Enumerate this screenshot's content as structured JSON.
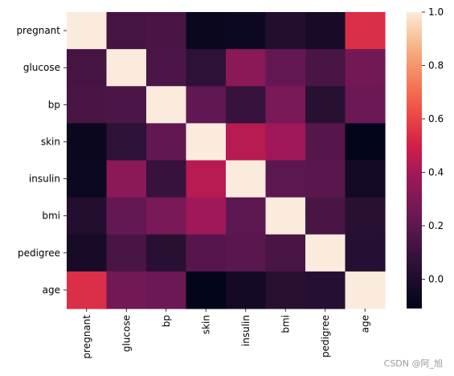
{
  "chart_data": {
    "type": "heatmap",
    "title": "",
    "xlabel": "",
    "ylabel": "",
    "x_categories": [
      "pregnant",
      "glucose",
      "bp",
      "skin",
      "insulin",
      "bmi",
      "pedigree",
      "age"
    ],
    "y_categories": [
      "pregnant",
      "glucose",
      "bp",
      "skin",
      "insulin",
      "bmi",
      "pedigree",
      "age"
    ],
    "values": [
      [
        1.0,
        0.13,
        0.14,
        -0.08,
        -0.07,
        0.02,
        -0.03,
        0.54
      ],
      [
        0.13,
        1.0,
        0.15,
        0.06,
        0.33,
        0.22,
        0.14,
        0.26
      ],
      [
        0.14,
        0.15,
        1.0,
        0.21,
        0.09,
        0.28,
        0.04,
        0.24
      ],
      [
        -0.08,
        0.06,
        0.21,
        1.0,
        0.44,
        0.39,
        0.18,
        -0.11
      ],
      [
        -0.07,
        0.33,
        0.09,
        0.44,
        1.0,
        0.2,
        0.19,
        -0.04
      ],
      [
        0.02,
        0.22,
        0.28,
        0.39,
        0.2,
        1.0,
        0.14,
        0.04
      ],
      [
        -0.03,
        0.14,
        0.04,
        0.18,
        0.19,
        0.14,
        1.0,
        0.03
      ],
      [
        0.54,
        0.26,
        0.24,
        -0.11,
        -0.04,
        0.04,
        0.03,
        1.0
      ]
    ],
    "vmin": -0.11,
    "vmax": 1.0,
    "colormap": "rocket",
    "colorbar": {
      "ticks": [
        1.0,
        0.8,
        0.6,
        0.4,
        0.2,
        0.0
      ],
      "tick_labels": [
        "1.0",
        "0.8",
        "0.6",
        "0.4",
        "0.2",
        "0.0"
      ]
    },
    "grid": false,
    "legend": "colorbar-right"
  },
  "watermark": "CSDN @阿_旭"
}
